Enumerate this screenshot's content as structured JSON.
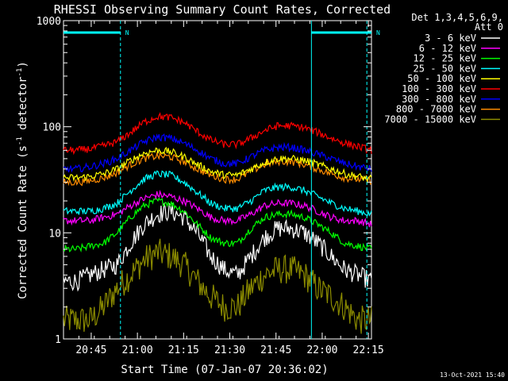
{
  "chart_data": {
    "type": "line",
    "title": "RHESSI Observing Summary Count Rates, Corrected",
    "xlabel": "Start Time (07-Jan-07 20:36:02)",
    "ylabel_main": "Corrected Count Rate (s",
    "ylabel_sup1": "-1",
    "ylabel_mid": " detector",
    "ylabel_sup2": "-1",
    "ylabel_end": ")",
    "y_scale": "log",
    "ylim": [
      1,
      1000
    ],
    "xlim_minutes": [
      0,
      100
    ],
    "x_tick_labels": [
      "20:45",
      "21:00",
      "21:15",
      "21:30",
      "21:45",
      "22:00",
      "22:15"
    ],
    "x_tick_minutes": [
      9,
      24,
      39,
      54,
      69,
      84,
      99
    ],
    "y_tick_labels": [
      "1",
      "10",
      "100",
      "1000"
    ],
    "y_tick_values": [
      1,
      10,
      100,
      1000
    ],
    "legend_header": [
      "Det 1,3,4,5,6,9,",
      "Att 0"
    ],
    "legend_position": "right",
    "footer_date": "13-Oct-2021 15:40",
    "night_marker": "N",
    "night_intervals_minutes": [
      [
        0,
        18.5
      ],
      [
        80.5,
        100
      ]
    ],
    "eclipse_lines_minutes": [
      18.5,
      80.5,
      98.5
    ],
    "solid_lines_minutes": [
      80.5
    ],
    "series": [
      {
        "name": "3 - 6 keV",
        "color": "#ffffff",
        "values": [
          3.5,
          3.5,
          4,
          4.5,
          5,
          8,
          12,
          15,
          16,
          14,
          10,
          6,
          4.5,
          4,
          6,
          9,
          11,
          11,
          10,
          8,
          6,
          4.5,
          4,
          3.5
        ]
      },
      {
        "name": "6 - 12 keV",
        "color": "#ff00ff",
        "values": [
          13,
          13,
          13,
          14,
          15,
          18,
          21,
          23,
          22,
          20,
          17,
          14,
          13,
          13,
          15,
          18,
          19,
          19,
          18,
          16,
          14,
          13,
          13,
          12
        ]
      },
      {
        "name": "12 - 25 keV",
        "color": "#00ff00",
        "values": [
          7,
          7,
          7.5,
          8,
          10,
          14,
          18,
          20,
          19,
          16,
          12,
          9,
          8,
          8,
          11,
          14,
          15,
          15,
          14,
          12,
          10,
          8,
          7.5,
          7
        ]
      },
      {
        "name": "25 - 50 keV",
        "color": "#00ffff",
        "values": [
          16,
          16,
          16,
          17,
          19,
          25,
          32,
          36,
          35,
          30,
          24,
          19,
          17,
          17,
          20,
          25,
          27,
          27,
          25,
          22,
          19,
          17,
          16,
          15
        ]
      },
      {
        "name": "50 - 100 keV",
        "color": "#ffff00",
        "values": [
          33,
          33,
          34,
          36,
          40,
          48,
          56,
          60,
          58,
          52,
          44,
          38,
          35,
          35,
          40,
          46,
          50,
          50,
          48,
          44,
          40,
          36,
          34,
          32
        ]
      },
      {
        "name": "100 - 300 keV",
        "color": "#ff0000",
        "values": [
          60,
          60,
          62,
          66,
          72,
          88,
          110,
          125,
          122,
          110,
          90,
          75,
          68,
          68,
          78,
          92,
          102,
          102,
          98,
          88,
          78,
          70,
          65,
          60
        ]
      },
      {
        "name": "300 - 800 keV",
        "color": "#0000ff",
        "values": [
          40,
          40,
          42,
          45,
          50,
          60,
          72,
          80,
          78,
          70,
          60,
          50,
          45,
          45,
          52,
          60,
          64,
          64,
          60,
          55,
          50,
          45,
          42,
          40
        ]
      },
      {
        "name": "800 - 7000 keV",
        "color": "#ff8c00",
        "values": [
          30,
          30,
          31,
          33,
          37,
          44,
          50,
          53,
          52,
          47,
          40,
          35,
          32,
          32,
          38,
          44,
          47,
          47,
          44,
          40,
          36,
          33,
          32,
          31
        ]
      },
      {
        "name": "7000 - 15000 keV",
        "color": "#8b8b00",
        "values": [
          1.5,
          1.5,
          1.5,
          2,
          3,
          4,
          5.5,
          6.5,
          6,
          5,
          3.5,
          2.5,
          2,
          2,
          3,
          4,
          4.5,
          4.5,
          4,
          3,
          2.5,
          2,
          1.5,
          1.5
        ]
      }
    ]
  }
}
